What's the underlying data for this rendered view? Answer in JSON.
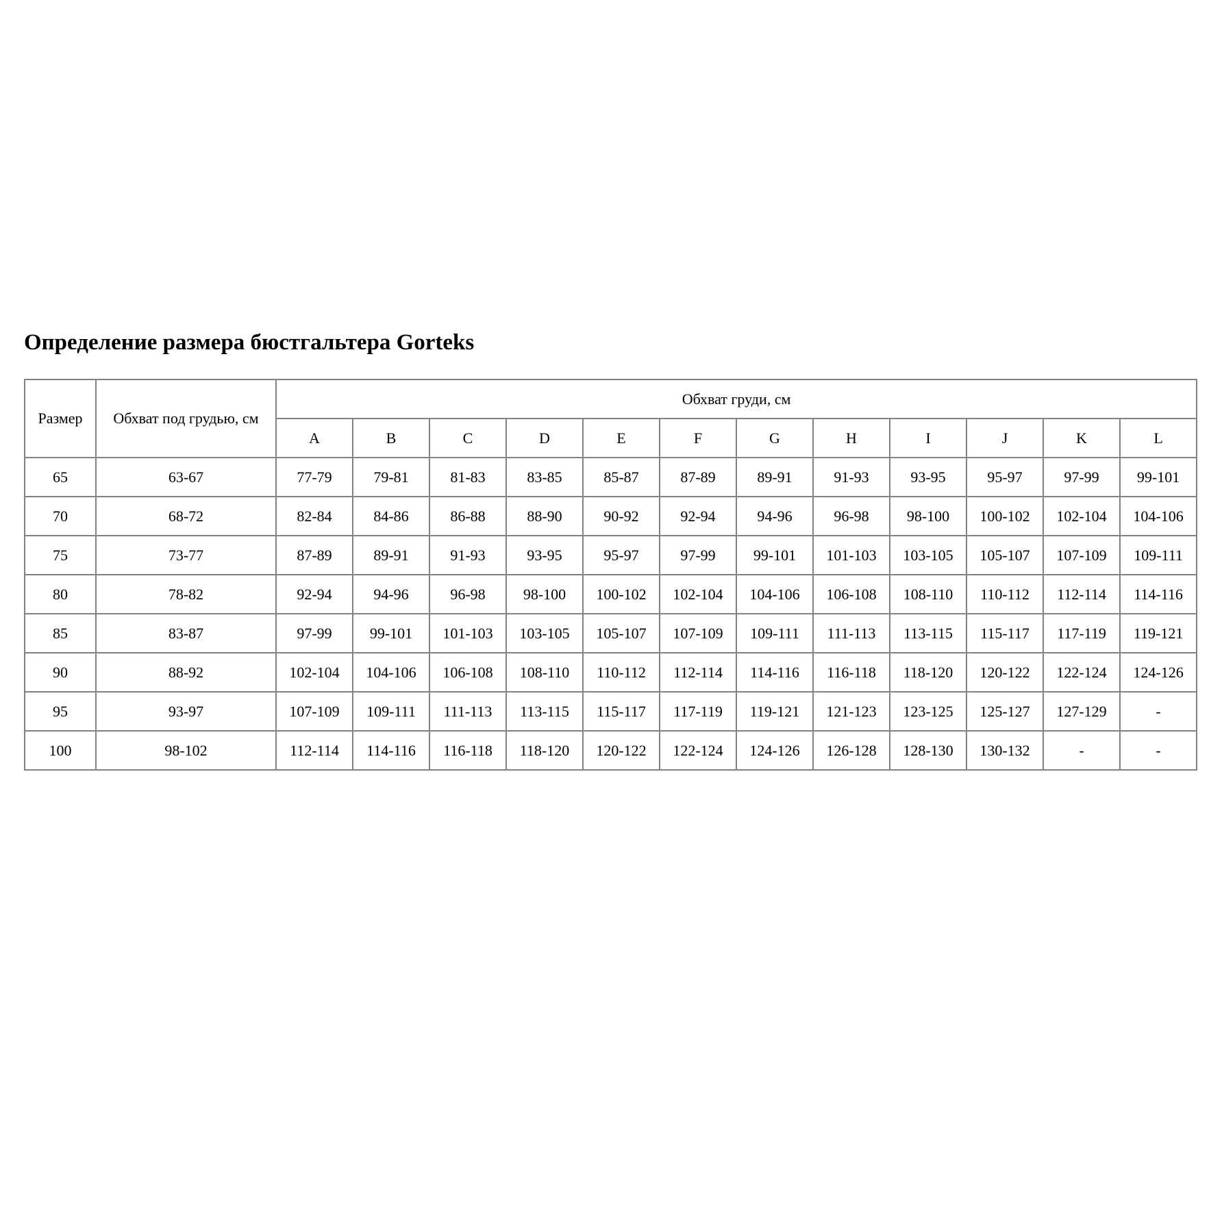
{
  "title": "Определение размера бюстгальтера Gorteks",
  "table": {
    "header": {
      "size": "Размер",
      "underbust": "Обхват под грудью, см",
      "bust": "Обхват груди, см",
      "cups": [
        "A",
        "B",
        "C",
        "D",
        "E",
        "F",
        "G",
        "H",
        "I",
        "J",
        "K",
        "L"
      ]
    },
    "rows": [
      {
        "size": "65",
        "underbust": "63-67",
        "values": [
          "77-79",
          "79-81",
          "81-83",
          "83-85",
          "85-87",
          "87-89",
          "89-91",
          "91-93",
          "93-95",
          "95-97",
          "97-99",
          "99-101"
        ]
      },
      {
        "size": "70",
        "underbust": "68-72",
        "values": [
          "82-84",
          "84-86",
          "86-88",
          "88-90",
          "90-92",
          "92-94",
          "94-96",
          "96-98",
          "98-100",
          "100-102",
          "102-104",
          "104-106"
        ]
      },
      {
        "size": "75",
        "underbust": "73-77",
        "values": [
          "87-89",
          "89-91",
          "91-93",
          "93-95",
          "95-97",
          "97-99",
          "99-101",
          "101-103",
          "103-105",
          "105-107",
          "107-109",
          "109-111"
        ]
      },
      {
        "size": "80",
        "underbust": "78-82",
        "values": [
          "92-94",
          "94-96",
          "96-98",
          "98-100",
          "100-102",
          "102-104",
          "104-106",
          "106-108",
          "108-110",
          "110-112",
          "112-114",
          "114-116"
        ]
      },
      {
        "size": "85",
        "underbust": "83-87",
        "values": [
          "97-99",
          "99-101",
          "101-103",
          "103-105",
          "105-107",
          "107-109",
          "109-111",
          "111-113",
          "113-115",
          "115-117",
          "117-119",
          "119-121"
        ]
      },
      {
        "size": "90",
        "underbust": "88-92",
        "values": [
          "102-104",
          "104-106",
          "106-108",
          "108-110",
          "110-112",
          "112-114",
          "114-116",
          "116-118",
          "118-120",
          "120-122",
          "122-124",
          "124-126"
        ]
      },
      {
        "size": "95",
        "underbust": "93-97",
        "values": [
          "107-109",
          "109-111",
          "111-113",
          "113-115",
          "115-117",
          "117-119",
          "119-121",
          "121-123",
          "123-125",
          "125-127",
          "127-129",
          "-"
        ]
      },
      {
        "size": "100",
        "underbust": "98-102",
        "values": [
          "112-114",
          "114-116",
          "116-118",
          "118-120",
          "120-122",
          "122-124",
          "124-126",
          "126-128",
          "128-130",
          "130-132",
          "-",
          "-"
        ]
      }
    ]
  }
}
